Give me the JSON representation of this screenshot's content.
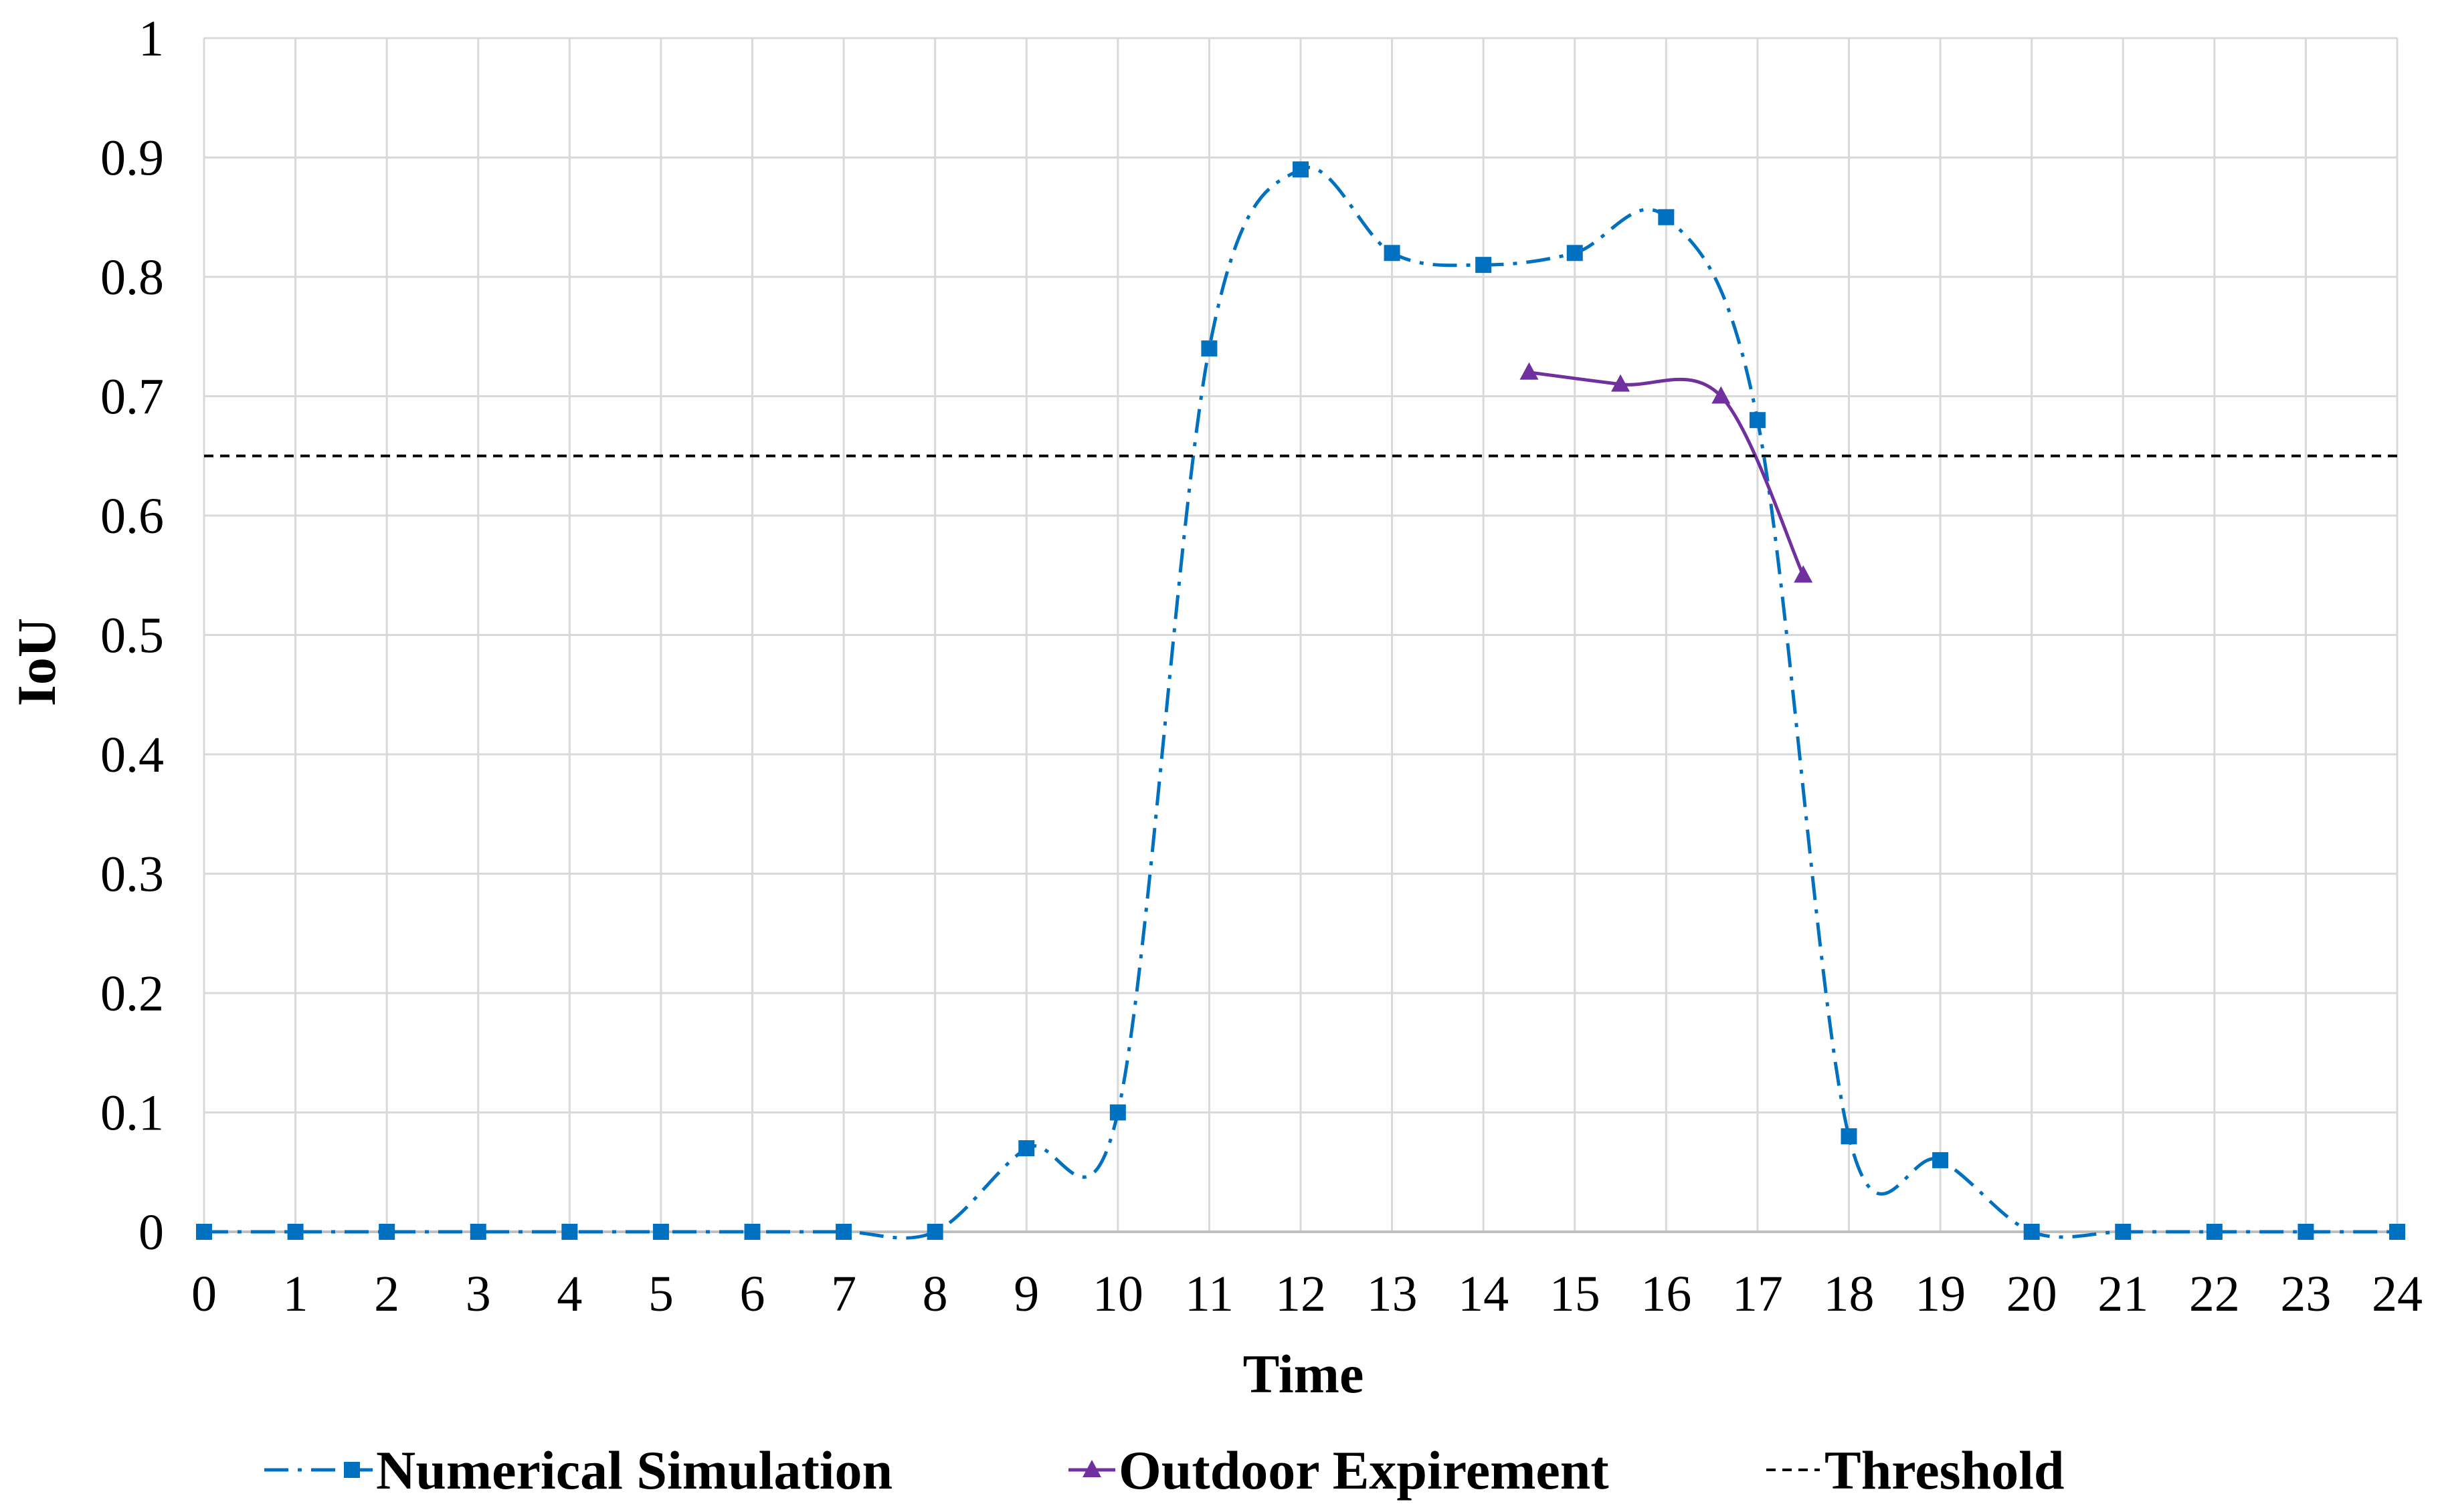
{
  "chart_data": {
    "type": "line",
    "title": "",
    "xlabel": "Time",
    "ylabel": "IoU",
    "xlim": [
      0,
      24
    ],
    "ylim": [
      0,
      1
    ],
    "x_ticks": [
      "0",
      "1",
      "2",
      "3",
      "4",
      "5",
      "6",
      "7",
      "8",
      "9",
      "10",
      "11",
      "12",
      "13",
      "14",
      "15",
      "16",
      "17",
      "18",
      "19",
      "20",
      "21",
      "22",
      "23",
      "24"
    ],
    "y_ticks": [
      "0",
      "0.1",
      "0.2",
      "0.3",
      "0.4",
      "0.5",
      "0.6",
      "0.7",
      "0.8",
      "0.9",
      "1"
    ],
    "grid": true,
    "legend_position": "bottom",
    "series": [
      {
        "name": "Numerical Simulation",
        "color": "#0070C0",
        "line_style": "dash-dot",
        "marker": "square",
        "smooth": true,
        "x": [
          0,
          1,
          2,
          3,
          4,
          5,
          6,
          7,
          8,
          9,
          10,
          11,
          12,
          13,
          14,
          15,
          16,
          17,
          18,
          19,
          20,
          21,
          22,
          23,
          24
        ],
        "y": [
          0,
          0,
          0,
          0,
          0,
          0,
          0,
          0,
          0,
          0.07,
          0.1,
          0.74,
          0.89,
          0.82,
          0.81,
          0.82,
          0.85,
          0.68,
          0.08,
          0.06,
          0,
          0,
          0,
          0,
          0
        ]
      },
      {
        "name": "Outdoor Expirement",
        "color": "#7030A0",
        "line_style": "solid",
        "marker": "triangle",
        "smooth": true,
        "x": [
          14.5,
          15.5,
          16.6,
          17.5
        ],
        "y": [
          0.72,
          0.71,
          0.7,
          0.55
        ]
      },
      {
        "name": "Threshold",
        "color": "#000000",
        "line_style": "dashed",
        "marker": "none",
        "smooth": false,
        "x": [
          0,
          24
        ],
        "y": [
          0.65,
          0.65
        ]
      }
    ]
  }
}
